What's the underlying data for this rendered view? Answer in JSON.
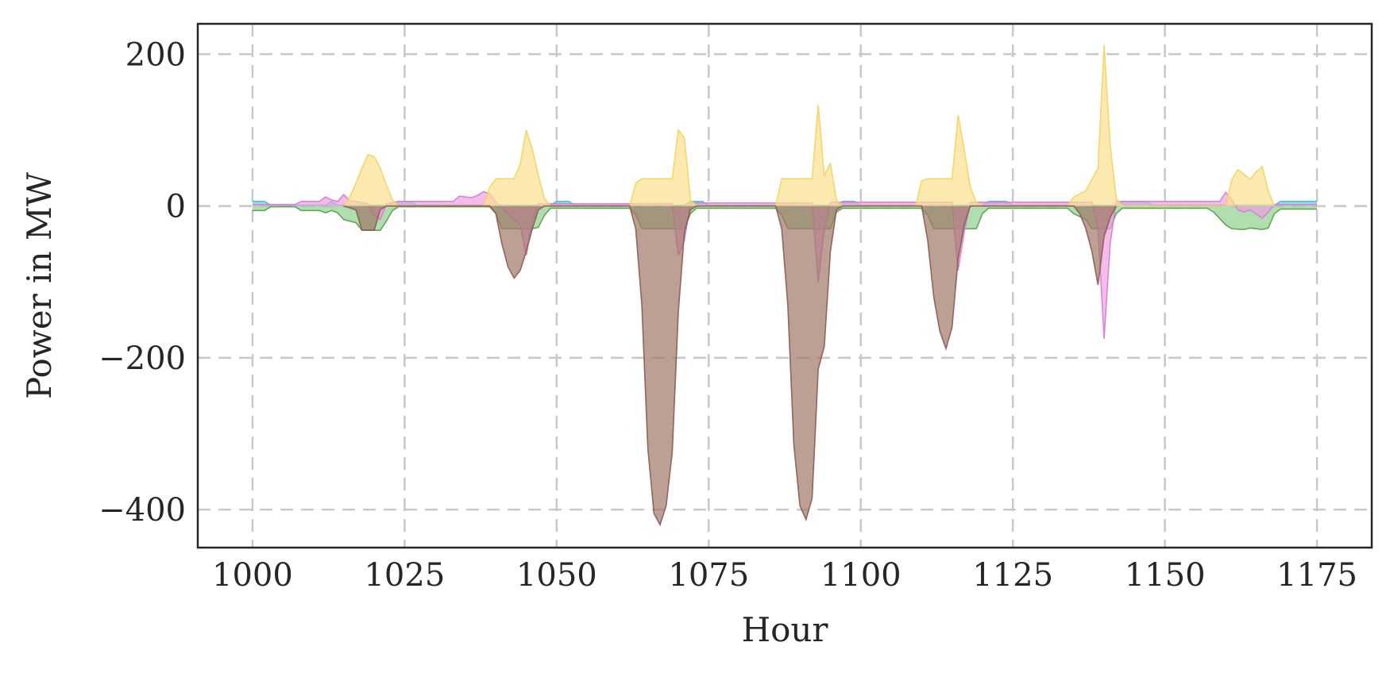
{
  "chart_data": {
    "type": "area",
    "title": "",
    "xlabel": "Hour",
    "ylabel": "Power in MW",
    "xlim": [
      991,
      1184
    ],
    "ylim": [
      -450,
      240
    ],
    "x_ticks": [
      1000,
      1025,
      1050,
      1075,
      1100,
      1125,
      1150,
      1175
    ],
    "x_tick_labels": [
      "1000",
      "1025",
      "1050",
      "1075",
      "1100",
      "1125",
      "1150",
      "1175"
    ],
    "y_ticks": [
      200,
      0,
      -200,
      -400
    ],
    "y_tick_labels": [
      "200",
      "0",
      "−200",
      "−400"
    ],
    "grid": true,
    "legend": "none",
    "series": [
      {
        "color": "#5a9c4a",
        "fill": "#8fd08c",
        "points": [
          [
            1000,
            -6
          ],
          [
            1002,
            -6
          ],
          [
            1003,
            -1
          ],
          [
            1007,
            -1
          ],
          [
            1008,
            -6
          ],
          [
            1011,
            -6
          ],
          [
            1012,
            -9
          ],
          [
            1013,
            -6
          ],
          [
            1014,
            -9
          ],
          [
            1015,
            -18
          ],
          [
            1017,
            -22
          ],
          [
            1018,
            -32
          ],
          [
            1021,
            -32
          ],
          [
            1022,
            -20
          ],
          [
            1023,
            -6
          ],
          [
            1024,
            -1
          ],
          [
            1039,
            -1
          ],
          [
            1040,
            -10
          ],
          [
            1041,
            -30
          ],
          [
            1046,
            -30
          ],
          [
            1047,
            -28
          ],
          [
            1048,
            -12
          ],
          [
            1049,
            -3
          ],
          [
            1062,
            -3
          ],
          [
            1063,
            -12
          ],
          [
            1064,
            -30
          ],
          [
            1071,
            -30
          ],
          [
            1072,
            -10
          ],
          [
            1073,
            -3
          ],
          [
            1086,
            -3
          ],
          [
            1087,
            -12
          ],
          [
            1088,
            -30
          ],
          [
            1095,
            -30
          ],
          [
            1096,
            -8
          ],
          [
            1097,
            -3
          ],
          [
            1110,
            -3
          ],
          [
            1111,
            -12
          ],
          [
            1112,
            -30
          ],
          [
            1119,
            -30
          ],
          [
            1120,
            -10
          ],
          [
            1121,
            -3
          ],
          [
            1134,
            -3
          ],
          [
            1135,
            -10
          ],
          [
            1137,
            -18
          ],
          [
            1138,
            -30
          ],
          [
            1141,
            -30
          ],
          [
            1142,
            -10
          ],
          [
            1143,
            -3
          ],
          [
            1157,
            -3
          ],
          [
            1158,
            -8
          ],
          [
            1160,
            -25
          ],
          [
            1161,
            -30
          ],
          [
            1163,
            -31
          ],
          [
            1164,
            -29
          ],
          [
            1166,
            -31
          ],
          [
            1167,
            -29
          ],
          [
            1168,
            -10
          ],
          [
            1169,
            -4
          ],
          [
            1175,
            -4
          ]
        ]
      },
      {
        "color": "#3fbfd0",
        "fill": "#67d3dd",
        "points": [
          [
            1000,
            6
          ],
          [
            1002,
            6
          ],
          [
            1003,
            1
          ],
          [
            1012,
            1
          ],
          [
            1013,
            6
          ],
          [
            1014,
            1
          ],
          [
            1022,
            1
          ],
          [
            1024,
            6
          ],
          [
            1026,
            6
          ],
          [
            1027,
            1
          ],
          [
            1049,
            1
          ],
          [
            1050,
            6
          ],
          [
            1052,
            6
          ],
          [
            1053,
            1
          ],
          [
            1071,
            1
          ],
          [
            1072,
            6
          ],
          [
            1074,
            6
          ],
          [
            1075,
            1
          ],
          [
            1096,
            1
          ],
          [
            1097,
            6
          ],
          [
            1099,
            6
          ],
          [
            1100,
            1
          ],
          [
            1120,
            1
          ],
          [
            1121,
            6
          ],
          [
            1124,
            6
          ],
          [
            1125,
            1
          ],
          [
            1142,
            1
          ],
          [
            1143,
            6
          ],
          [
            1147,
            6
          ],
          [
            1148,
            1
          ],
          [
            1168,
            1
          ],
          [
            1169,
            6
          ],
          [
            1175,
            6
          ]
        ]
      },
      {
        "color": "#d67bd6",
        "fill": "#ee9fe0",
        "points": [
          [
            1000,
            2
          ],
          [
            1007,
            2
          ],
          [
            1008,
            6
          ],
          [
            1011,
            6
          ],
          [
            1012,
            12
          ],
          [
            1013,
            8
          ],
          [
            1014,
            6
          ],
          [
            1015,
            15
          ],
          [
            1016,
            7
          ],
          [
            1019,
            3
          ],
          [
            1020,
            -12
          ],
          [
            1021,
            -18
          ],
          [
            1022,
            3
          ],
          [
            1024,
            6
          ],
          [
            1033,
            6
          ],
          [
            1034,
            13
          ],
          [
            1036,
            11
          ],
          [
            1037,
            14
          ],
          [
            1038,
            19
          ],
          [
            1039,
            16
          ],
          [
            1040,
            5
          ],
          [
            1044,
            -25
          ],
          [
            1045,
            -65
          ],
          [
            1046,
            -20
          ],
          [
            1047,
            3
          ],
          [
            1069,
            3
          ],
          [
            1070,
            -65
          ],
          [
            1071,
            -45
          ],
          [
            1072,
            4
          ],
          [
            1092,
            4
          ],
          [
            1093,
            -100
          ],
          [
            1094,
            -30
          ],
          [
            1095,
            5
          ],
          [
            1115,
            5
          ],
          [
            1116,
            -85
          ],
          [
            1117,
            -35
          ],
          [
            1118,
            5
          ],
          [
            1138,
            5
          ],
          [
            1139,
            -30
          ],
          [
            1140,
            -175
          ],
          [
            1141,
            -50
          ],
          [
            1142,
            6
          ],
          [
            1159,
            6
          ],
          [
            1160,
            18
          ],
          [
            1161,
            8
          ],
          [
            1162,
            -5
          ],
          [
            1163,
            -8
          ],
          [
            1164,
            -5
          ],
          [
            1166,
            -16
          ],
          [
            1167,
            -8
          ],
          [
            1168,
            2
          ],
          [
            1175,
            2
          ]
        ]
      },
      {
        "color": "#f4d35e",
        "fill": "#fbe08f",
        "points": [
          [
            1015,
            0
          ],
          [
            1016,
            12
          ],
          [
            1017,
            30
          ],
          [
            1018,
            50
          ],
          [
            1019,
            68
          ],
          [
            1020,
            65
          ],
          [
            1021,
            50
          ],
          [
            1022,
            28
          ],
          [
            1023,
            8
          ],
          [
            1024,
            0
          ],
          [
            1038,
            0
          ],
          [
            1039,
            25
          ],
          [
            1040,
            36
          ],
          [
            1043,
            36
          ],
          [
            1044,
            55
          ],
          [
            1045,
            100
          ],
          [
            1046,
            75
          ],
          [
            1047,
            40
          ],
          [
            1048,
            10
          ],
          [
            1049,
            0
          ],
          [
            1062,
            0
          ],
          [
            1063,
            30
          ],
          [
            1064,
            36
          ],
          [
            1068,
            36
          ],
          [
            1069,
            36
          ],
          [
            1070,
            100
          ],
          [
            1071,
            90
          ],
          [
            1072,
            8
          ],
          [
            1073,
            0
          ],
          [
            1086,
            0
          ],
          [
            1087,
            36
          ],
          [
            1092,
            36
          ],
          [
            1093,
            133
          ],
          [
            1094,
            40
          ],
          [
            1095,
            56
          ],
          [
            1096,
            8
          ],
          [
            1097,
            0
          ],
          [
            1109,
            0
          ],
          [
            1110,
            33
          ],
          [
            1111,
            36
          ],
          [
            1114,
            36
          ],
          [
            1115,
            36
          ],
          [
            1116,
            120
          ],
          [
            1117,
            75
          ],
          [
            1118,
            25
          ],
          [
            1119,
            5
          ],
          [
            1120,
            0
          ],
          [
            1134,
            0
          ],
          [
            1135,
            12
          ],
          [
            1137,
            20
          ],
          [
            1138,
            35
          ],
          [
            1139,
            50
          ],
          [
            1140,
            212
          ],
          [
            1141,
            80
          ],
          [
            1142,
            10
          ],
          [
            1143,
            0
          ],
          [
            1160,
            0
          ],
          [
            1161,
            35
          ],
          [
            1162,
            48
          ],
          [
            1163,
            42
          ],
          [
            1164,
            35
          ],
          [
            1165,
            45
          ],
          [
            1166,
            52
          ],
          [
            1167,
            20
          ],
          [
            1168,
            0
          ]
        ]
      },
      {
        "color": "#8b5a50",
        "fill": "#a07868",
        "points": [
          [
            1015,
            0
          ],
          [
            1017,
            -5
          ],
          [
            1018,
            -32
          ],
          [
            1020,
            -32
          ],
          [
            1021,
            -5
          ],
          [
            1022,
            0
          ],
          [
            1039,
            0
          ],
          [
            1040,
            -10
          ],
          [
            1041,
            -50
          ],
          [
            1042,
            -80
          ],
          [
            1043,
            -95
          ],
          [
            1044,
            -85
          ],
          [
            1045,
            -60
          ],
          [
            1046,
            -30
          ],
          [
            1047,
            -5
          ],
          [
            1048,
            0
          ],
          [
            1062,
            0
          ],
          [
            1063,
            -30
          ],
          [
            1064,
            -130
          ],
          [
            1065,
            -320
          ],
          [
            1066,
            -405
          ],
          [
            1067,
            -420
          ],
          [
            1068,
            -395
          ],
          [
            1069,
            -325
          ],
          [
            1070,
            -140
          ],
          [
            1071,
            -35
          ],
          [
            1072,
            -5
          ],
          [
            1073,
            0
          ],
          [
            1086,
            0
          ],
          [
            1087,
            -30
          ],
          [
            1088,
            -130
          ],
          [
            1089,
            -315
          ],
          [
            1090,
            -395
          ],
          [
            1091,
            -413
          ],
          [
            1092,
            -385
          ],
          [
            1093,
            -215
          ],
          [
            1094,
            -185
          ],
          [
            1095,
            -60
          ],
          [
            1096,
            -5
          ],
          [
            1097,
            0
          ],
          [
            1110,
            0
          ],
          [
            1111,
            -45
          ],
          [
            1112,
            -120
          ],
          [
            1113,
            -165
          ],
          [
            1114,
            -188
          ],
          [
            1115,
            -160
          ],
          [
            1116,
            -70
          ],
          [
            1117,
            -25
          ],
          [
            1118,
            0
          ],
          [
            1135,
            0
          ],
          [
            1136,
            -10
          ],
          [
            1137,
            -30
          ],
          [
            1138,
            -60
          ],
          [
            1139,
            -104
          ],
          [
            1140,
            -40
          ],
          [
            1141,
            -15
          ],
          [
            1142,
            0
          ]
        ]
      }
    ]
  }
}
